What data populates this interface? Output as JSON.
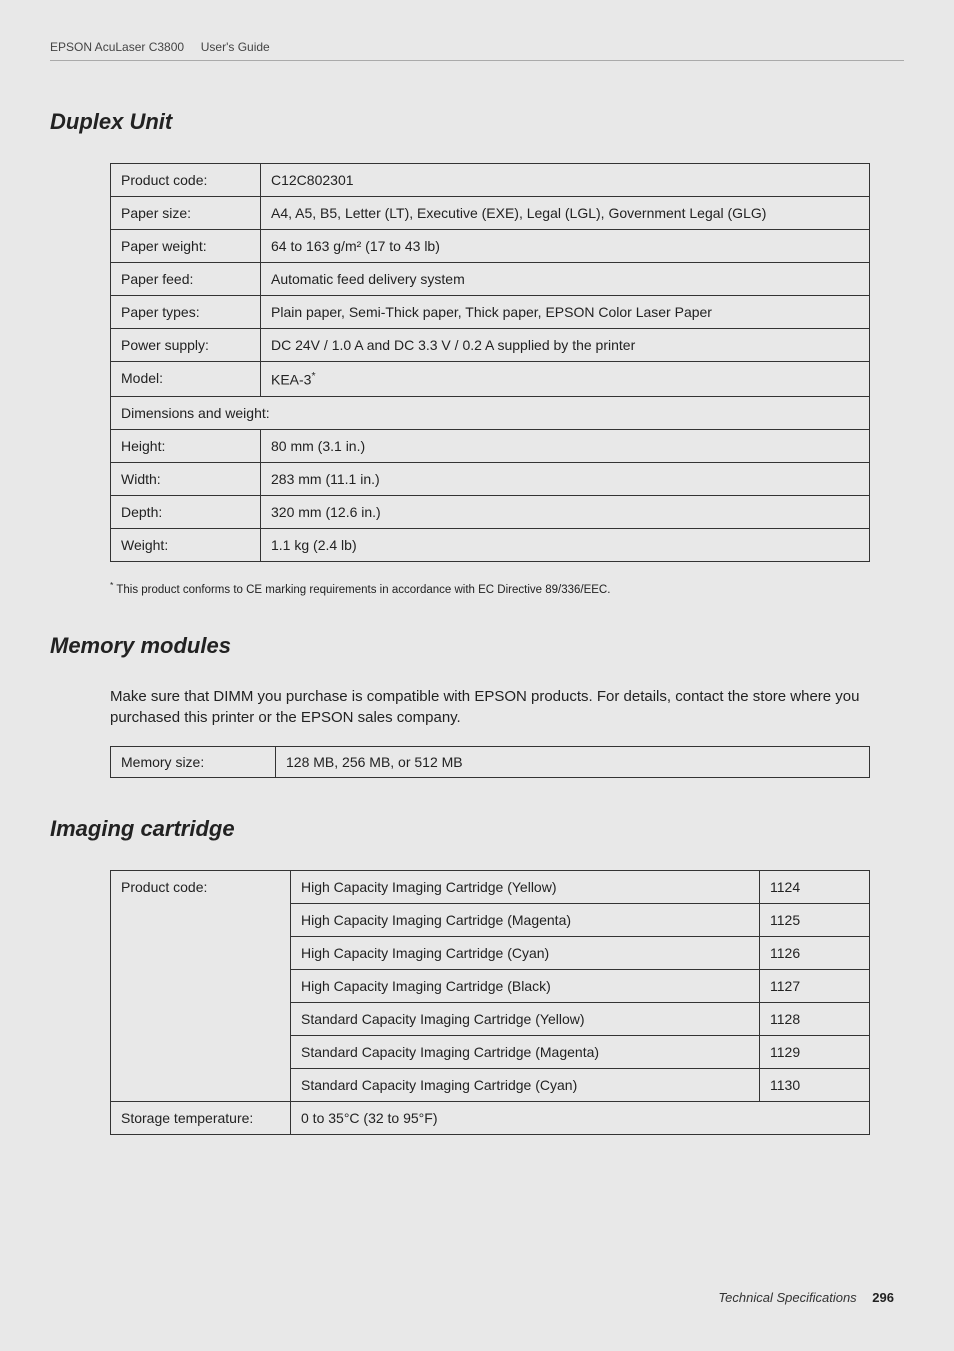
{
  "header": {
    "product": "EPSON AcuLaser C3800",
    "doc": "User's Guide"
  },
  "duplex": {
    "title": "Duplex Unit",
    "rows": {
      "product_code_label": "Product code:",
      "product_code_value": "C12C802301",
      "paper_size_label": "Paper size:",
      "paper_size_value": "A4, A5, B5, Letter (LT), Executive (EXE), Legal (LGL), Government Legal (GLG)",
      "paper_weight_label": "Paper weight:",
      "paper_weight_value": "64 to 163 g/m² (17 to 43 lb)",
      "paper_feed_label": "Paper feed:",
      "paper_feed_value": "Automatic feed delivery system",
      "paper_types_label": "Paper types:",
      "paper_types_value": "Plain paper, Semi-Thick paper, Thick paper, EPSON Color Laser Paper",
      "power_supply_label": "Power supply:",
      "power_supply_value": "DC 24V / 1.0 A and DC 3.3 V / 0.2 A supplied by the printer",
      "model_label": "Model:",
      "model_value": "KEA-3",
      "dimensions_label": "Dimensions and weight:",
      "height_label": "Height:",
      "height_value": "80 mm (3.1 in.)",
      "width_label": "Width:",
      "width_value": "283 mm (11.1 in.)",
      "depth_label": "Depth:",
      "depth_value": "320 mm (12.6 in.)",
      "weight_label": "Weight:",
      "weight_value": "1.1 kg (2.4 lb)"
    },
    "footnote": "This product conforms to CE marking requirements in accordance with EC Directive 89/336/EEC."
  },
  "memory": {
    "title": "Memory modules",
    "body": "Make sure that DIMM you purchase is compatible with EPSON products. For details, contact the store where you purchased this printer or the EPSON sales company.",
    "size_label": "Memory size:",
    "size_value": "128 MB, 256 MB, or 512 MB"
  },
  "cartridge": {
    "title": "Imaging cartridge",
    "product_code_label": "Product code:",
    "items": [
      {
        "name": "High Capacity Imaging Cartridge (Yellow)",
        "code": "1124"
      },
      {
        "name": "High Capacity Imaging Cartridge (Magenta)",
        "code": "1125"
      },
      {
        "name": "High Capacity Imaging Cartridge (Cyan)",
        "code": "1126"
      },
      {
        "name": "High Capacity Imaging Cartridge (Black)",
        "code": "1127"
      },
      {
        "name": "Standard Capacity Imaging Cartridge (Yellow)",
        "code": "1128"
      },
      {
        "name": "Standard Capacity Imaging Cartridge (Magenta)",
        "code": "1129"
      },
      {
        "name": "Standard Capacity Imaging Cartridge (Cyan)",
        "code": "1130"
      }
    ],
    "storage_label": "Storage temperature:",
    "storage_value": "0 to 35°C (32 to 95°F)"
  },
  "footer": {
    "section": "Technical Specifications",
    "page": "296"
  }
}
